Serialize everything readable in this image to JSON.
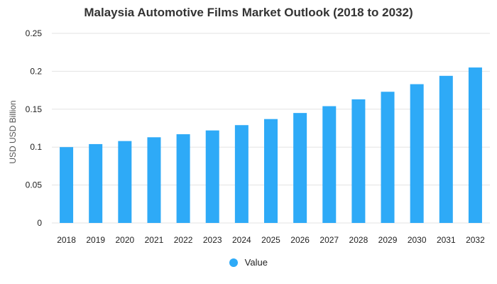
{
  "chart_data": {
    "type": "bar",
    "title": "Malaysia Automotive Films Market Outlook (2018 to 2032)",
    "xlabel": "",
    "ylabel": "USD USD Billion",
    "ylim": [
      0,
      0.25
    ],
    "yticks": [
      "0",
      "0.05",
      "0.1",
      "0.15",
      "0.2",
      "0.25"
    ],
    "grid": true,
    "legend_position": "bottom",
    "categories": [
      "2018",
      "2019",
      "2020",
      "2021",
      "2022",
      "2023",
      "2024",
      "2025",
      "2026",
      "2027",
      "2028",
      "2029",
      "2030",
      "2031",
      "2032"
    ],
    "series": [
      {
        "name": "Value",
        "color": "#2eaaf7",
        "values": [
          0.1,
          0.104,
          0.108,
          0.113,
          0.117,
          0.122,
          0.129,
          0.137,
          0.145,
          0.154,
          0.163,
          0.173,
          0.183,
          0.194,
          0.205
        ]
      }
    ]
  }
}
